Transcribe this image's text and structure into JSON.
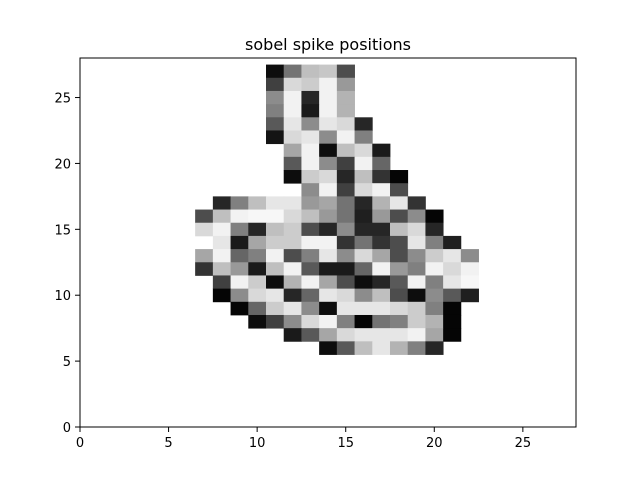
{
  "chart_data": {
    "type": "heatmap",
    "title": "sobel spike positions",
    "xlabel": "",
    "ylabel": "",
    "xlim": [
      0,
      28
    ],
    "ylim": [
      0,
      28
    ],
    "grid": false,
    "colormap": "gray",
    "xticks": [
      0,
      5,
      10,
      15,
      20,
      25
    ],
    "yticks": [
      0,
      5,
      10,
      15,
      20,
      25
    ],
    "pixels": [
      {
        "y": 27,
        "cells": [
          [
            11,
            0.05
          ],
          [
            12,
            0.45
          ],
          [
            13,
            0.75
          ],
          [
            14,
            0.78
          ],
          [
            15,
            0.3
          ]
        ]
      },
      {
        "y": 26,
        "cells": [
          [
            11,
            0.25
          ],
          [
            12,
            0.85
          ],
          [
            13,
            0.8
          ],
          [
            14,
            0.95
          ],
          [
            15,
            0.6
          ]
        ]
      },
      {
        "y": 25,
        "cells": [
          [
            11,
            0.55
          ],
          [
            12,
            0.95
          ],
          [
            13,
            0.15
          ],
          [
            14,
            0.95
          ],
          [
            15,
            0.7
          ]
        ]
      },
      {
        "y": 24,
        "cells": [
          [
            11,
            0.5
          ],
          [
            12,
            0.95
          ],
          [
            13,
            0.1
          ],
          [
            14,
            0.95
          ],
          [
            15,
            0.7
          ]
        ]
      },
      {
        "y": 23,
        "cells": [
          [
            11,
            0.35
          ],
          [
            12,
            0.9
          ],
          [
            13,
            0.55
          ],
          [
            14,
            0.9
          ],
          [
            15,
            0.85
          ],
          [
            16,
            0.15
          ]
        ]
      },
      {
        "y": 22,
        "cells": [
          [
            11,
            0.08
          ],
          [
            12,
            0.85
          ],
          [
            13,
            0.9
          ],
          [
            14,
            0.55
          ],
          [
            15,
            0.95
          ],
          [
            16,
            0.5
          ]
        ]
      },
      {
        "y": 21,
        "cells": [
          [
            12,
            0.65
          ],
          [
            13,
            0.95
          ],
          [
            14,
            0.05
          ],
          [
            15,
            0.75
          ],
          [
            16,
            0.85
          ],
          [
            17,
            0.1
          ]
        ]
      },
      {
        "y": 20,
        "cells": [
          [
            12,
            0.35
          ],
          [
            13,
            0.95
          ],
          [
            14,
            0.55
          ],
          [
            15,
            0.25
          ],
          [
            16,
            0.95
          ],
          [
            17,
            0.4
          ]
        ]
      },
      {
        "y": 19,
        "cells": [
          [
            12,
            0.05
          ],
          [
            13,
            0.8
          ],
          [
            14,
            0.85
          ],
          [
            15,
            0.15
          ],
          [
            16,
            0.75
          ],
          [
            17,
            0.2
          ],
          [
            18,
            0.02
          ]
        ]
      },
      {
        "y": 18,
        "cells": [
          [
            13,
            0.55
          ],
          [
            14,
            0.95
          ],
          [
            15,
            0.25
          ],
          [
            16,
            0.85
          ],
          [
            17,
            0.95
          ],
          [
            18,
            0.3
          ]
        ]
      },
      {
        "y": 17,
        "cells": [
          [
            8,
            0.15
          ],
          [
            9,
            0.5
          ],
          [
            10,
            0.75
          ],
          [
            11,
            0.9
          ],
          [
            12,
            0.9
          ],
          [
            13,
            0.6
          ],
          [
            14,
            0.65
          ],
          [
            15,
            0.45
          ],
          [
            16,
            0.15
          ],
          [
            17,
            0.7
          ],
          [
            18,
            0.9
          ],
          [
            19,
            0.2
          ]
        ]
      },
      {
        "y": 16,
        "cells": [
          [
            7,
            0.3
          ],
          [
            8,
            0.75
          ],
          [
            9,
            0.95
          ],
          [
            10,
            0.97
          ],
          [
            11,
            0.97
          ],
          [
            12,
            0.85
          ],
          [
            13,
            0.75
          ],
          [
            14,
            0.6
          ],
          [
            15,
            0.45
          ],
          [
            16,
            0.12
          ],
          [
            17,
            0.6
          ],
          [
            18,
            0.3
          ],
          [
            19,
            0.55
          ],
          [
            20,
            0.02
          ]
        ]
      },
      {
        "y": 15,
        "cells": [
          [
            7,
            0.85
          ],
          [
            8,
            0.95
          ],
          [
            9,
            0.5
          ],
          [
            10,
            0.15
          ],
          [
            11,
            0.75
          ],
          [
            12,
            0.8
          ],
          [
            13,
            0.3
          ],
          [
            14,
            0.15
          ],
          [
            15,
            0.55
          ],
          [
            16,
            0.15
          ],
          [
            17,
            0.15
          ],
          [
            18,
            0.75
          ],
          [
            19,
            0.85
          ],
          [
            20,
            0.15
          ]
        ]
      },
      {
        "y": 14,
        "cells": [
          [
            8,
            0.9
          ],
          [
            9,
            0.1
          ],
          [
            10,
            0.65
          ],
          [
            11,
            0.8
          ],
          [
            12,
            0.8
          ],
          [
            13,
            0.95
          ],
          [
            14,
            0.95
          ],
          [
            15,
            0.2
          ],
          [
            16,
            0.45
          ],
          [
            17,
            0.2
          ],
          [
            18,
            0.3
          ],
          [
            19,
            0.9
          ],
          [
            20,
            0.5
          ],
          [
            21,
            0.12
          ]
        ]
      },
      {
        "y": 13,
        "cells": [
          [
            7,
            0.65
          ],
          [
            8,
            0.95
          ],
          [
            9,
            0.4
          ],
          [
            10,
            0.5
          ],
          [
            11,
            0.95
          ],
          [
            12,
            0.3
          ],
          [
            13,
            0.5
          ],
          [
            14,
            0.9
          ],
          [
            15,
            0.55
          ],
          [
            16,
            0.85
          ],
          [
            17,
            0.65
          ],
          [
            18,
            0.3
          ],
          [
            19,
            0.55
          ],
          [
            20,
            0.8
          ],
          [
            21,
            0.9
          ],
          [
            22,
            0.55
          ]
        ]
      },
      {
        "y": 12,
        "cells": [
          [
            7,
            0.2
          ],
          [
            8,
            0.75
          ],
          [
            9,
            0.6
          ],
          [
            10,
            0.1
          ],
          [
            11,
            0.75
          ],
          [
            12,
            0.95
          ],
          [
            13,
            0.35
          ],
          [
            14,
            0.1
          ],
          [
            15,
            0.1
          ],
          [
            16,
            0.4
          ],
          [
            17,
            0.95
          ],
          [
            18,
            0.6
          ],
          [
            19,
            0.5
          ],
          [
            20,
            0.95
          ],
          [
            21,
            0.85
          ],
          [
            22,
            0.95
          ]
        ]
      },
      {
        "y": 11,
        "cells": [
          [
            8,
            0.25
          ],
          [
            9,
            0.95
          ],
          [
            10,
            0.8
          ],
          [
            11,
            0.05
          ],
          [
            12,
            0.7
          ],
          [
            13,
            0.95
          ],
          [
            14,
            0.65
          ],
          [
            15,
            0.3
          ],
          [
            16,
            0.05
          ],
          [
            17,
            0.15
          ],
          [
            18,
            0.35
          ],
          [
            19,
            0.95
          ],
          [
            20,
            0.5
          ],
          [
            21,
            0.9
          ],
          [
            22,
            0.97
          ]
        ]
      },
      {
        "y": 10,
        "cells": [
          [
            8,
            0.02
          ],
          [
            9,
            0.55
          ],
          [
            10,
            0.85
          ],
          [
            11,
            0.9
          ],
          [
            12,
            0.15
          ],
          [
            13,
            0.4
          ],
          [
            14,
            0.9
          ],
          [
            15,
            0.85
          ],
          [
            16,
            0.55
          ],
          [
            17,
            0.75
          ],
          [
            18,
            0.3
          ],
          [
            19,
            0.05
          ],
          [
            20,
            0.55
          ],
          [
            21,
            0.35
          ],
          [
            22,
            0.12
          ]
        ]
      },
      {
        "y": 9,
        "cells": [
          [
            9,
            0.02
          ],
          [
            10,
            0.4
          ],
          [
            11,
            0.8
          ],
          [
            12,
            0.9
          ],
          [
            13,
            0.55
          ],
          [
            14,
            0.05
          ],
          [
            15,
            0.9
          ],
          [
            16,
            0.9
          ],
          [
            17,
            0.9
          ],
          [
            18,
            0.85
          ],
          [
            19,
            0.8
          ],
          [
            20,
            0.5
          ],
          [
            21,
            0.02
          ]
        ]
      },
      {
        "y": 8,
        "cells": [
          [
            10,
            0.05
          ],
          [
            11,
            0.25
          ],
          [
            12,
            0.55
          ],
          [
            13,
            0.85
          ],
          [
            14,
            0.95
          ],
          [
            15,
            0.5
          ],
          [
            16,
            0.02
          ],
          [
            17,
            0.45
          ],
          [
            18,
            0.5
          ],
          [
            19,
            0.8
          ],
          [
            20,
            0.7
          ],
          [
            21,
            0.02
          ]
        ]
      },
      {
        "y": 7,
        "cells": [
          [
            12,
            0.1
          ],
          [
            13,
            0.35
          ],
          [
            14,
            0.65
          ],
          [
            15,
            0.85
          ],
          [
            16,
            0.9
          ],
          [
            17,
            0.9
          ],
          [
            18,
            0.9
          ],
          [
            19,
            0.95
          ],
          [
            20,
            0.65
          ],
          [
            21,
            0.02
          ]
        ]
      },
      {
        "y": 6,
        "cells": [
          [
            14,
            0.05
          ],
          [
            15,
            0.35
          ],
          [
            16,
            0.75
          ],
          [
            17,
            0.9
          ],
          [
            18,
            0.7
          ],
          [
            19,
            0.5
          ],
          [
            20,
            0.15
          ]
        ]
      }
    ]
  }
}
